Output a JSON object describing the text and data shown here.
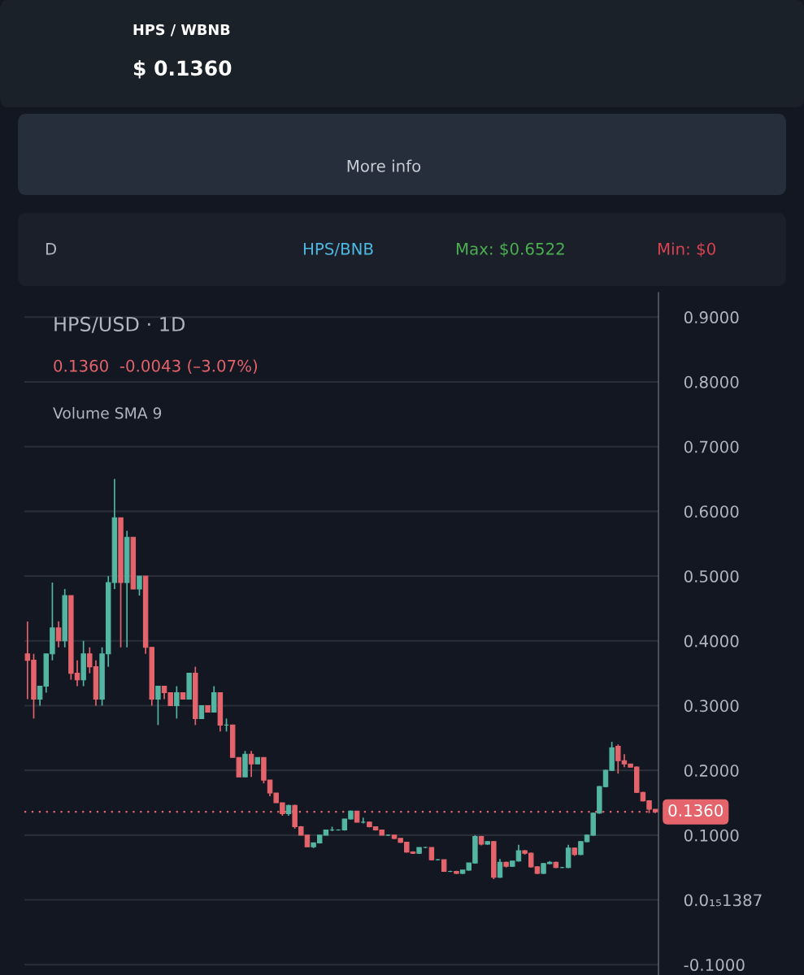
{
  "chart_data": {
    "type": "candlestick",
    "title": "HPS/USD · 1D",
    "subtitle": "0.1360  -0.0043 (–3.07%)",
    "annotations": [
      "HPS / WBNB",
      "$ 0.1360",
      "More info",
      "D",
      "HPS/BNB",
      "Max: $0.6522",
      "Min: $0",
      "Volume SMA 9"
    ],
    "categories": [
      null,
      null,
      null,
      null,
      null,
      null,
      null,
      null,
      null,
      null,
      null,
      null,
      null,
      null,
      null,
      null,
      null,
      null,
      null,
      null,
      null,
      null,
      null,
      null,
      null,
      null,
      null,
      null,
      null,
      null,
      null,
      null,
      null,
      null,
      null,
      null,
      null,
      null,
      null,
      null,
      null,
      null,
      null,
      null,
      null,
      null,
      null,
      null,
      null,
      null,
      null,
      null,
      null,
      null,
      null,
      null,
      null,
      null,
      null,
      null,
      null,
      null,
      null,
      null,
      null,
      null,
      null,
      null,
      null,
      null,
      null,
      null,
      null,
      null,
      null,
      null,
      null,
      null,
      null,
      null,
      null,
      null,
      null,
      null,
      null,
      null,
      null,
      null,
      null,
      null,
      null,
      null,
      null,
      null,
      null,
      null,
      null,
      null,
      null,
      null,
      null,
      null
    ],
    "ohlc": [
      [
        0.38,
        0.43,
        0.31,
        0.37
      ],
      [
        0.37,
        0.38,
        0.28,
        0.31
      ],
      [
        0.31,
        0.33,
        0.3,
        0.33
      ],
      [
        0.33,
        0.38,
        0.32,
        0.38
      ],
      [
        0.38,
        0.49,
        0.37,
        0.42
      ],
      [
        0.42,
        0.43,
        0.39,
        0.4
      ],
      [
        0.4,
        0.48,
        0.39,
        0.47
      ],
      [
        0.47,
        0.47,
        0.34,
        0.35
      ],
      [
        0.35,
        0.37,
        0.33,
        0.34
      ],
      [
        0.34,
        0.4,
        0.33,
        0.38
      ],
      [
        0.38,
        0.39,
        0.35,
        0.36
      ],
      [
        0.36,
        0.37,
        0.3,
        0.31
      ],
      [
        0.31,
        0.39,
        0.3,
        0.38
      ],
      [
        0.38,
        0.5,
        0.36,
        0.49
      ],
      [
        0.49,
        0.65,
        0.48,
        0.59
      ],
      [
        0.59,
        0.59,
        0.39,
        0.49
      ],
      [
        0.49,
        0.57,
        0.39,
        0.56
      ],
      [
        0.56,
        0.56,
        0.48,
        0.48
      ],
      [
        0.48,
        0.5,
        0.47,
        0.5
      ],
      [
        0.5,
        0.5,
        0.38,
        0.39
      ],
      [
        0.39,
        0.39,
        0.3,
        0.31
      ],
      [
        0.31,
        0.33,
        0.27,
        0.33
      ],
      [
        0.33,
        0.33,
        0.31,
        0.32
      ],
      [
        0.32,
        0.32,
        0.3,
        0.3
      ],
      [
        0.3,
        0.33,
        0.28,
        0.32
      ],
      [
        0.32,
        0.32,
        0.31,
        0.31
      ],
      [
        0.31,
        0.35,
        0.31,
        0.35
      ],
      [
        0.35,
        0.36,
        0.27,
        0.28
      ],
      [
        0.28,
        0.3,
        0.28,
        0.3
      ],
      [
        0.3,
        0.3,
        0.29,
        0.29
      ],
      [
        0.29,
        0.33,
        0.29,
        0.32
      ],
      [
        0.32,
        0.32,
        0.26,
        0.27
      ],
      [
        0.27,
        0.28,
        0.26,
        0.27
      ],
      [
        0.27,
        0.27,
        0.22,
        0.22
      ],
      [
        0.22,
        0.22,
        0.19,
        0.19
      ],
      [
        0.19,
        0.23,
        0.19,
        0.225
      ],
      [
        0.225,
        0.23,
        0.19,
        0.21
      ],
      [
        0.21,
        0.22,
        0.21,
        0.22
      ],
      [
        0.22,
        0.22,
        0.18,
        0.185
      ],
      [
        0.185,
        0.185,
        0.16,
        0.165
      ],
      [
        0.165,
        0.165,
        0.15,
        0.15
      ],
      [
        0.15,
        0.15,
        0.13,
        0.133
      ],
      [
        0.133,
        0.147,
        0.13,
        0.146
      ],
      [
        0.146,
        0.147,
        0.11,
        0.113
      ],
      [
        0.113,
        0.114,
        0.1,
        0.1
      ],
      [
        0.1,
        0.1,
        0.082,
        0.082
      ],
      [
        0.082,
        0.088,
        0.08,
        0.088
      ],
      [
        0.088,
        0.1,
        0.087,
        0.1
      ],
      [
        0.1,
        0.108,
        0.1,
        0.108
      ],
      [
        0.108,
        0.113,
        0.106,
        0.108
      ],
      [
        0.108,
        0.109,
        0.107,
        0.108
      ],
      [
        0.108,
        0.125,
        0.107,
        0.125
      ],
      [
        0.125,
        0.138,
        0.124,
        0.137
      ],
      [
        0.137,
        0.137,
        0.12,
        0.12
      ],
      [
        0.12,
        0.127,
        0.118,
        0.12
      ],
      [
        0.12,
        0.121,
        0.112,
        0.113
      ],
      [
        0.113,
        0.113,
        0.107,
        0.108
      ],
      [
        0.108,
        0.108,
        0.1,
        0.1
      ],
      [
        0.1,
        0.101,
        0.099,
        0.1
      ],
      [
        0.1,
        0.1,
        0.094,
        0.095
      ],
      [
        0.095,
        0.095,
        0.088,
        0.089
      ],
      [
        0.089,
        0.089,
        0.073,
        0.074
      ],
      [
        0.074,
        0.075,
        0.071,
        0.072
      ],
      [
        0.072,
        0.081,
        0.071,
        0.081
      ],
      [
        0.081,
        0.082,
        0.08,
        0.081
      ],
      [
        0.081,
        0.081,
        0.061,
        0.062
      ],
      [
        0.062,
        0.063,
        0.061,
        0.062
      ],
      [
        0.062,
        0.062,
        0.044,
        0.044
      ],
      [
        0.044,
        0.045,
        0.043,
        0.044
      ],
      [
        0.044,
        0.045,
        0.04,
        0.041
      ],
      [
        0.041,
        0.046,
        0.04,
        0.046
      ],
      [
        0.046,
        0.057,
        0.045,
        0.057
      ],
      [
        0.057,
        0.1,
        0.056,
        0.098
      ],
      [
        0.098,
        0.099,
        0.084,
        0.086
      ],
      [
        0.086,
        0.091,
        0.085,
        0.09
      ],
      [
        0.09,
        0.091,
        0.032,
        0.035
      ],
      [
        0.035,
        0.063,
        0.034,
        0.058
      ],
      [
        0.058,
        0.059,
        0.05,
        0.052
      ],
      [
        0.052,
        0.06,
        0.051,
        0.06
      ],
      [
        0.06,
        0.085,
        0.059,
        0.076
      ],
      [
        0.076,
        0.077,
        0.07,
        0.072
      ],
      [
        0.072,
        0.073,
        0.05,
        0.051
      ],
      [
        0.051,
        0.052,
        0.04,
        0.041
      ],
      [
        0.041,
        0.057,
        0.04,
        0.056
      ],
      [
        0.056,
        0.06,
        0.055,
        0.058
      ],
      [
        0.058,
        0.059,
        0.049,
        0.05
      ],
      [
        0.05,
        0.051,
        0.049,
        0.05
      ],
      [
        0.05,
        0.085,
        0.049,
        0.08
      ],
      [
        0.08,
        0.081,
        0.068,
        0.07
      ],
      [
        0.07,
        0.091,
        0.069,
        0.09
      ],
      [
        0.09,
        0.101,
        0.089,
        0.1
      ],
      [
        0.1,
        0.135,
        0.099,
        0.134
      ],
      [
        0.134,
        0.176,
        0.133,
        0.175
      ],
      [
        0.175,
        0.201,
        0.174,
        0.2
      ],
      [
        0.2,
        0.244,
        0.199,
        0.235
      ],
      [
        0.237,
        0.24,
        0.195,
        0.215
      ],
      [
        0.215,
        0.225,
        0.205,
        0.21
      ],
      [
        0.21,
        0.21,
        0.205,
        0.205
      ],
      [
        0.205,
        0.206,
        0.165,
        0.166
      ],
      [
        0.166,
        0.167,
        0.152,
        0.153
      ],
      [
        0.153,
        0.154,
        0.134,
        0.14
      ],
      [
        0.14,
        0.14,
        0.134,
        0.136
      ]
    ],
    "colors": [
      "#e5646b",
      "#e5646b",
      "#53b5a2",
      "#53b5a2",
      "#53b5a2",
      "#e5646b",
      "#53b5a2",
      "#e5646b",
      "#e5646b",
      "#53b5a2",
      "#e5646b",
      "#e5646b",
      "#53b5a2",
      "#53b5a2",
      "#53b5a2",
      "#e5646b",
      "#53b5a2",
      "#e5646b",
      "#53b5a2",
      "#e5646b",
      "#e5646b",
      "#53b5a2",
      "#e5646b",
      "#e5646b",
      "#53b5a2",
      "#e5646b",
      "#53b5a2",
      "#e5646b",
      "#53b5a2",
      "#e5646b",
      "#53b5a2",
      "#e5646b",
      "#53b5a2",
      "#e5646b",
      "#e5646b",
      "#53b5a2",
      "#e5646b",
      "#53b5a2",
      "#e5646b",
      "#e5646b",
      "#e5646b",
      "#e5646b",
      "#53b5a2",
      "#e5646b",
      "#e5646b",
      "#e5646b",
      "#53b5a2",
      "#53b5a2",
      "#53b5a2",
      "#53b5a2",
      "#53b5a2",
      "#53b5a2",
      "#53b5a2",
      "#e5646b",
      "#53b5a2",
      "#e5646b",
      "#e5646b",
      "#e5646b",
      "#53b5a2",
      "#e5646b",
      "#e5646b",
      "#e5646b",
      "#e5646b",
      "#53b5a2",
      "#53b5a2",
      "#e5646b",
      "#53b5a2",
      "#e5646b",
      "#53b5a2",
      "#e5646b",
      "#53b5a2",
      "#53b5a2",
      "#53b5a2",
      "#e5646b",
      "#53b5a2",
      "#e5646b",
      "#53b5a2",
      "#e5646b",
      "#53b5a2",
      "#53b5a2",
      "#e5646b",
      "#e5646b",
      "#e5646b",
      "#53b5a2",
      "#53b5a2",
      "#e5646b",
      "#53b5a2",
      "#53b5a2",
      "#e5646b",
      "#53b5a2",
      "#53b5a2",
      "#53b5a2",
      "#53b5a2",
      "#53b5a2",
      "#53b5a2",
      "#e5646b",
      "#e5646b",
      "#e5646b",
      "#e5646b",
      "#e5646b",
      "#e5646b",
      "#e5646b"
    ],
    "ylim": [
      -0.116,
      0.938
    ],
    "yticks": [
      {
        "value": -0.1,
        "label": "-0.1000"
      },
      {
        "value": 0,
        "label": "0.0₁₅1387"
      },
      {
        "value": 0.1,
        "label": "0.1000"
      },
      {
        "value": 0.2,
        "label": "0.2000"
      },
      {
        "value": 0.3,
        "label": "0.3000"
      },
      {
        "value": 0.4,
        "label": "0.4000"
      },
      {
        "value": 0.5,
        "label": "0.5000"
      },
      {
        "value": 0.6,
        "label": "0.6000"
      },
      {
        "value": 0.7,
        "label": "0.7000"
      },
      {
        "value": 0.8,
        "label": "0.8000"
      },
      {
        "value": 0.9,
        "label": "0.9000"
      }
    ],
    "ref_lines": [
      {
        "axis": "y",
        "value": 0.136,
        "label": "0.1360",
        "color": "#e5646b",
        "line_style": "dotted"
      }
    ],
    "grid": "y",
    "tick_labels": "y"
  }
}
